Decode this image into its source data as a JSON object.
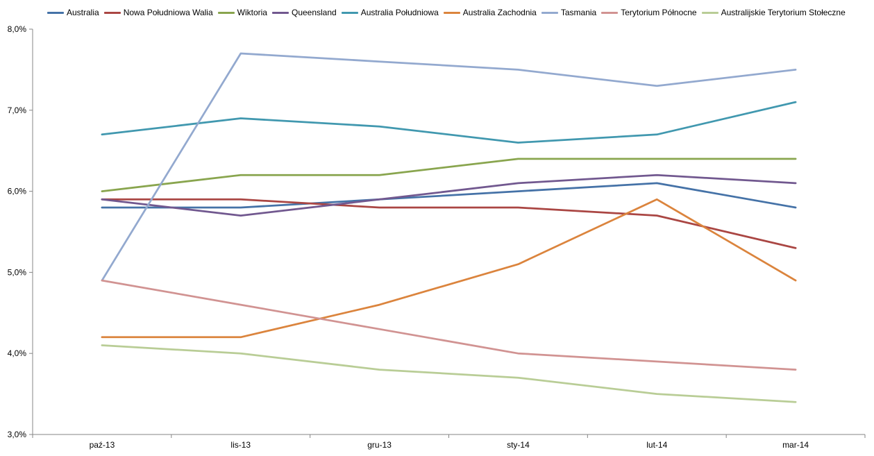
{
  "chart_data": {
    "type": "line",
    "categories": [
      "paź-13",
      "lis-13",
      "gru-13",
      "sty-14",
      "lut-14",
      "mar-14"
    ],
    "yticks": [
      "3,0%",
      "4,0%",
      "5,0%",
      "6,0%",
      "7,0%",
      "8,0%"
    ],
    "ylim": [
      3.0,
      8.0
    ],
    "grid": false,
    "legend_position": "top",
    "series": [
      {
        "name": "Australia",
        "color": "#4572A7",
        "values": [
          5.8,
          5.8,
          5.9,
          6.0,
          6.1,
          5.8
        ]
      },
      {
        "name": "Nowa Południowa Walia",
        "color": "#AA4643",
        "values": [
          5.9,
          5.9,
          5.8,
          5.8,
          5.7,
          5.3
        ]
      },
      {
        "name": "Wiktoria",
        "color": "#89A54E",
        "values": [
          6.0,
          6.2,
          6.2,
          6.4,
          6.4,
          6.4
        ]
      },
      {
        "name": "Queensland",
        "color": "#71588F",
        "values": [
          5.9,
          5.7,
          5.9,
          6.1,
          6.2,
          6.1
        ]
      },
      {
        "name": "Australia Południowa",
        "color": "#4198AF",
        "values": [
          6.7,
          6.9,
          6.8,
          6.6,
          6.7,
          7.1
        ]
      },
      {
        "name": "Australia Zachodnia",
        "color": "#DB843D",
        "values": [
          4.2,
          4.2,
          4.6,
          5.1,
          5.9,
          4.9
        ]
      },
      {
        "name": "Tasmania",
        "color": "#93A9CF",
        "values": [
          4.9,
          7.7,
          7.6,
          7.5,
          7.3,
          7.5
        ]
      },
      {
        "name": "Terytorium Północne",
        "color": "#D19392",
        "values": [
          4.9,
          4.6,
          4.3,
          4.0,
          3.9,
          3.8
        ]
      },
      {
        "name": "Australijskie Terytorium Stołeczne",
        "color": "#B9CD96",
        "values": [
          4.1,
          4.0,
          3.8,
          3.7,
          3.5,
          3.4
        ]
      }
    ]
  }
}
